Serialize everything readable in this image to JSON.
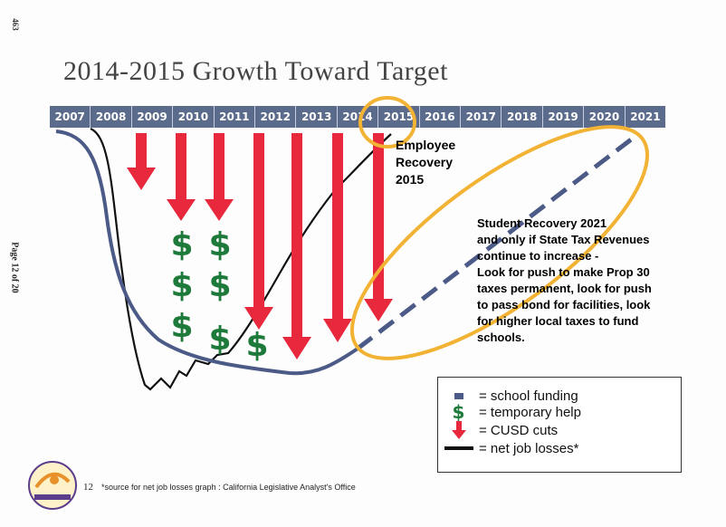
{
  "page": {
    "side_number": "463",
    "page_label": "Page 12 of 20",
    "title": "2014-2015 Growth Toward Target",
    "slide_number": "12",
    "source_note": "*source for net job losses graph : California Legislative Analyst's Office"
  },
  "years": [
    "2007",
    "2008",
    "2009",
    "2010",
    "2011",
    "2012",
    "2013",
    "2014",
    "2015",
    "2016",
    "2017",
    "2018",
    "2019",
    "2020",
    "2021"
  ],
  "annotations": {
    "employee_recovery": [
      "Employee",
      "Recovery",
      "2015"
    ],
    "student_recovery": [
      "Student  Recovery 2021",
      "and only if State Tax Revenues",
      "continue to increase -",
      "Look for push to make Prop 30",
      "taxes permanent, look for push",
      "to pass bond for facilities, look",
      "for higher local taxes to fund",
      "schools."
    ]
  },
  "legend": {
    "school_funding": "= school funding",
    "temporary_help": "= temporary help",
    "cusd_cuts": "= CUSD cuts",
    "net_job_losses": "= net job losses*"
  },
  "symbols": {
    "dollar": "$"
  },
  "colors": {
    "year_bar": "#5b6b8c",
    "funding_line": "#4b5a86",
    "cut_arrow": "#e8283c",
    "dollar": "#1e7a3a",
    "highlight_ring": "#f2b233",
    "job_losses": "#111111"
  }
}
